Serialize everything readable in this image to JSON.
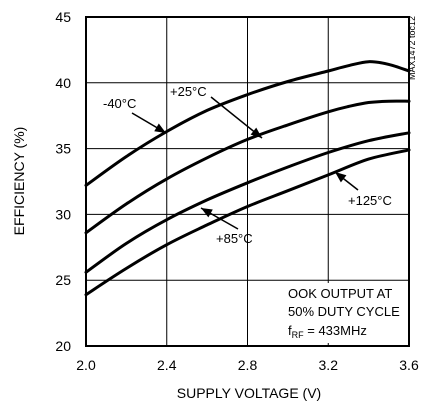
{
  "chart_data": {
    "type": "line",
    "title": "",
    "xlabel": "SUPPLY VOLTAGE (V)",
    "ylabel": "EFFICIENCY (%)",
    "xlim": [
      2.0,
      3.6
    ],
    "ylim": [
      20,
      45
    ],
    "xticks": [
      2.0,
      2.4,
      2.8,
      3.2,
      3.6
    ],
    "yticks": [
      20,
      25,
      30,
      35,
      40,
      45
    ],
    "xtick_labels": [
      "2.0",
      "2.4",
      "2.8",
      "3.2",
      "3.6"
    ],
    "ytick_labels": [
      "20",
      "25",
      "30",
      "35",
      "40",
      "45"
    ],
    "grid": true,
    "legend": "none",
    "side_label": "MAX1472 toc12",
    "series": [
      {
        "name": "-40°C",
        "x": [
          2.0,
          2.2,
          2.4,
          2.6,
          2.8,
          3.0,
          3.2,
          3.3,
          3.4,
          3.5,
          3.6
        ],
        "y": [
          32.2,
          34.4,
          36.3,
          37.9,
          39.1,
          40.1,
          40.9,
          41.3,
          41.6,
          41.4,
          40.9
        ]
      },
      {
        "name": "+25°C",
        "x": [
          2.0,
          2.2,
          2.4,
          2.6,
          2.8,
          3.0,
          3.2,
          3.3,
          3.4,
          3.5,
          3.6
        ],
        "y": [
          28.6,
          30.8,
          32.7,
          34.3,
          35.7,
          36.8,
          37.8,
          38.2,
          38.5,
          38.6,
          38.6
        ]
      },
      {
        "name": "+85°C",
        "x": [
          2.0,
          2.2,
          2.4,
          2.6,
          2.8,
          3.0,
          3.2,
          3.4,
          3.6
        ],
        "y": [
          25.6,
          27.8,
          29.6,
          31.1,
          32.4,
          33.6,
          34.7,
          35.6,
          36.2
        ]
      },
      {
        "name": "+125°C",
        "x": [
          2.0,
          2.2,
          2.4,
          2.6,
          2.8,
          3.0,
          3.2,
          3.4,
          3.6
        ],
        "y": [
          23.9,
          25.9,
          27.7,
          29.2,
          30.6,
          31.8,
          33.0,
          34.2,
          34.9
        ]
      }
    ],
    "annotations": {
      "cond_line1": "OOK OUTPUT AT",
      "cond_line2": "50% DUTY CYCLE",
      "cond_line3_main": "f",
      "cond_line3_sub": "RF",
      "cond_line3_rest": " = 433MHz"
    }
  }
}
